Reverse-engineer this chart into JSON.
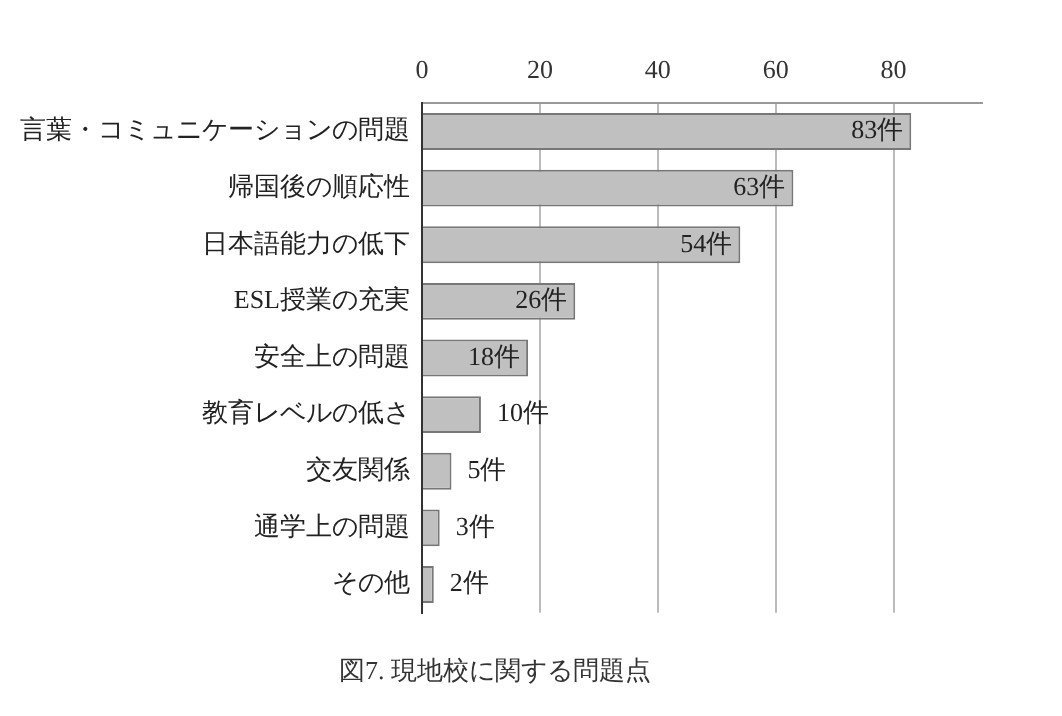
{
  "chart_data": {
    "type": "bar",
    "orientation": "horizontal",
    "title": "図7. 現地校に関する問題点",
    "categories": [
      "言葉・コミュニケーションの問題",
      "帰国後の順応性",
      "日本語能力の低下",
      "ESL授業の充実",
      "安全上の問題",
      "教育レベルの低さ",
      "交友関係",
      "通学上の問題",
      "その他"
    ],
    "values": [
      83,
      63,
      54,
      26,
      18,
      10,
      5,
      3,
      2
    ],
    "value_labels": [
      "83件",
      "63件",
      "54件",
      "26件",
      "18件",
      "10件",
      "5件",
      "3件",
      "2件"
    ],
    "color": "#c0c0c0",
    "xlim": [
      0,
      95
    ],
    "xticks": [
      0,
      20,
      40,
      60,
      80
    ],
    "grid": "x"
  }
}
